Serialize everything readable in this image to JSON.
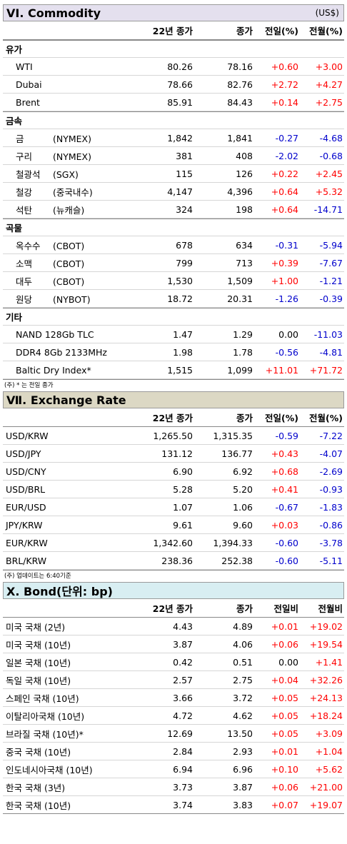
{
  "commodity": {
    "title": "VI. Commodity",
    "unit": "(US$)",
    "headers": [
      "22년 종가",
      "종가",
      "전일(%)",
      "전월(%)"
    ],
    "groups": [
      {
        "name": "유가",
        "items": [
          {
            "name": "WTI",
            "sub": "",
            "v": [
              "80.26",
              "78.16",
              "+0.60",
              "+3.00"
            ]
          },
          {
            "name": "Dubai",
            "sub": "",
            "v": [
              "78.66",
              "82.76",
              "+2.72",
              "+4.27"
            ]
          },
          {
            "name": "Brent",
            "sub": "",
            "v": [
              "85.91",
              "84.43",
              "+0.14",
              "+2.75"
            ]
          }
        ]
      },
      {
        "name": "금속",
        "items": [
          {
            "name": "금",
            "sub": "(NYMEX)",
            "v": [
              "1,842",
              "1,841",
              "-0.27",
              "-4.68"
            ]
          },
          {
            "name": "구리",
            "sub": "(NYMEX)",
            "v": [
              "381",
              "408",
              "-2.02",
              "-0.68"
            ]
          },
          {
            "name": "철광석",
            "sub": "(SGX)",
            "v": [
              "115",
              "126",
              "+0.22",
              "+2.45"
            ]
          },
          {
            "name": "철강",
            "sub": "(중국내수)",
            "v": [
              "4,147",
              "4,396",
              "+0.64",
              "+5.32"
            ]
          },
          {
            "name": "석탄",
            "sub": "(뉴캐슬)",
            "v": [
              "324",
              "198",
              "+0.64",
              "-14.71"
            ]
          }
        ]
      },
      {
        "name": "곡물",
        "items": [
          {
            "name": "옥수수",
            "sub": "(CBOT)",
            "v": [
              "678",
              "634",
              "-0.31",
              "-5.94"
            ]
          },
          {
            "name": "소맥",
            "sub": "(CBOT)",
            "v": [
              "799",
              "713",
              "+0.39",
              "-7.67"
            ]
          },
          {
            "name": "대두",
            "sub": "(CBOT)",
            "v": [
              "1,530",
              "1,509",
              "+1.00",
              "-1.21"
            ]
          },
          {
            "name": "원당",
            "sub": "(NYBOT)",
            "v": [
              "18.72",
              "20.31",
              "-1.26",
              "-0.39"
            ]
          }
        ]
      },
      {
        "name": "기타",
        "items": [
          {
            "name": "NAND 128Gb TLC",
            "sub": "",
            "v": [
              "1.47",
              "1.29",
              "0.00",
              "-11.03"
            ]
          },
          {
            "name": "DDR4 8Gb 2133MHz",
            "sub": "",
            "v": [
              "1.98",
              "1.78",
              "-0.56",
              "-4.81"
            ]
          },
          {
            "name": "Baltic Dry Index*",
            "sub": "",
            "v": [
              "1,515",
              "1,099",
              "+11.01",
              "+71.72"
            ]
          }
        ]
      }
    ],
    "note": "(주) * 는 전일 종가"
  },
  "exchange": {
    "title": "Ⅶ. Exchange Rate",
    "headers": [
      "22년 종가",
      "종가",
      "전일(%)",
      "전월(%)"
    ],
    "items": [
      {
        "name": "USD/KRW",
        "v": [
          "1,265.50",
          "1,315.35",
          "-0.59",
          "-7.22"
        ]
      },
      {
        "name": "USD/JPY",
        "v": [
          "131.12",
          "136.77",
          "+0.43",
          "-4.07"
        ]
      },
      {
        "name": "USD/CNY",
        "v": [
          "6.90",
          "6.92",
          "+0.68",
          "-2.69"
        ]
      },
      {
        "name": "USD/BRL",
        "v": [
          "5.28",
          "5.20",
          "+0.41",
          "-0.93"
        ]
      },
      {
        "name": "EUR/USD",
        "v": [
          "1.07",
          "1.06",
          "-0.67",
          "-1.83"
        ]
      },
      {
        "name": "JPY/KRW",
        "v": [
          "9.61",
          "9.60",
          "+0.03",
          "-0.86"
        ]
      },
      {
        "name": "EUR/KRW",
        "v": [
          "1,342.60",
          "1,394.33",
          "-0.60",
          "-3.78"
        ]
      },
      {
        "name": "BRL/KRW",
        "v": [
          "238.36",
          "252.38",
          "-0.60",
          "-5.11"
        ]
      }
    ],
    "note": "(주) 업데이트는 6:40기준"
  },
  "bond": {
    "title": "X. Bond(단위: bp)",
    "headers": [
      "22년 종가",
      "종가",
      "전일비",
      "전월비"
    ],
    "items": [
      {
        "name": "미국 국채 (2년)",
        "v": [
          "4.43",
          "4.89",
          "+0.01",
          "+19.02"
        ]
      },
      {
        "name": "미국 국채 (10년)",
        "v": [
          "3.87",
          "4.06",
          "+0.06",
          "+19.54"
        ]
      },
      {
        "name": "일본 국채 (10년)",
        "v": [
          "0.42",
          "0.51",
          "0.00",
          "+1.41"
        ]
      },
      {
        "name": "독일 국채 (10년)",
        "v": [
          "2.57",
          "2.75",
          "+0.04",
          "+32.26"
        ]
      },
      {
        "name": "스페인 국채 (10년)",
        "v": [
          "3.66",
          "3.72",
          "+0.05",
          "+24.13"
        ]
      },
      {
        "name": "이탈리아국채 (10년)",
        "v": [
          "4.72",
          "4.62",
          "+0.05",
          "+18.24"
        ]
      },
      {
        "name": "브라질 국채 (10년)*",
        "v": [
          "12.69",
          "13.50",
          "+0.05",
          "+3.09"
        ]
      },
      {
        "name": "중국 국채 (10년)",
        "v": [
          "2.84",
          "2.93",
          "+0.01",
          "+1.04"
        ]
      },
      {
        "name": "인도네시아국채 (10년)",
        "v": [
          "6.94",
          "6.96",
          "+0.10",
          "+5.62"
        ]
      },
      {
        "name": "한국 국채 (3년)",
        "v": [
          "3.73",
          "3.87",
          "+0.06",
          "+21.00"
        ]
      },
      {
        "name": "한국 국채 (10년)",
        "v": [
          "3.74",
          "3.83",
          "+0.07",
          "+19.07"
        ]
      }
    ]
  }
}
